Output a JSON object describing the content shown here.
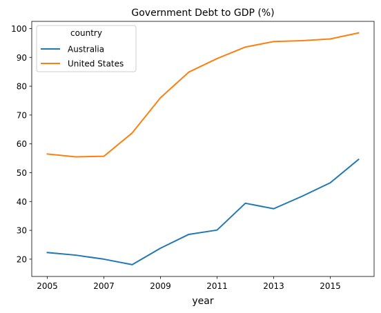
{
  "chart_data": {
    "type": "line",
    "title": "Government Debt to GDP (%)",
    "xlabel": "year",
    "ylabel": "",
    "x": [
      2005,
      2006,
      2007,
      2008,
      2009,
      2010,
      2011,
      2012,
      2013,
      2014,
      2015,
      2016
    ],
    "xlim": [
      2004.45,
      2016.55
    ],
    "ylim": [
      14.0,
      102.5
    ],
    "xticks": [
      2005,
      2007,
      2009,
      2011,
      2013,
      2015
    ],
    "yticks": [
      20,
      30,
      40,
      50,
      60,
      70,
      80,
      90,
      100
    ],
    "grid": false,
    "legend": {
      "title": "country",
      "placement": "top-left"
    },
    "series": [
      {
        "name": "Australia",
        "color": "#1f77b4",
        "values": [
          22.3,
          21.4,
          20.0,
          18.1,
          23.8,
          28.6,
          30.1,
          39.4,
          37.5,
          41.8,
          46.5,
          54.6
        ]
      },
      {
        "name": "United States",
        "color": "#ff7f0e",
        "values": [
          56.5,
          55.5,
          55.7,
          63.8,
          76.0,
          84.9,
          89.6,
          93.6,
          95.5,
          95.8,
          96.4,
          98.5
        ]
      }
    ]
  }
}
